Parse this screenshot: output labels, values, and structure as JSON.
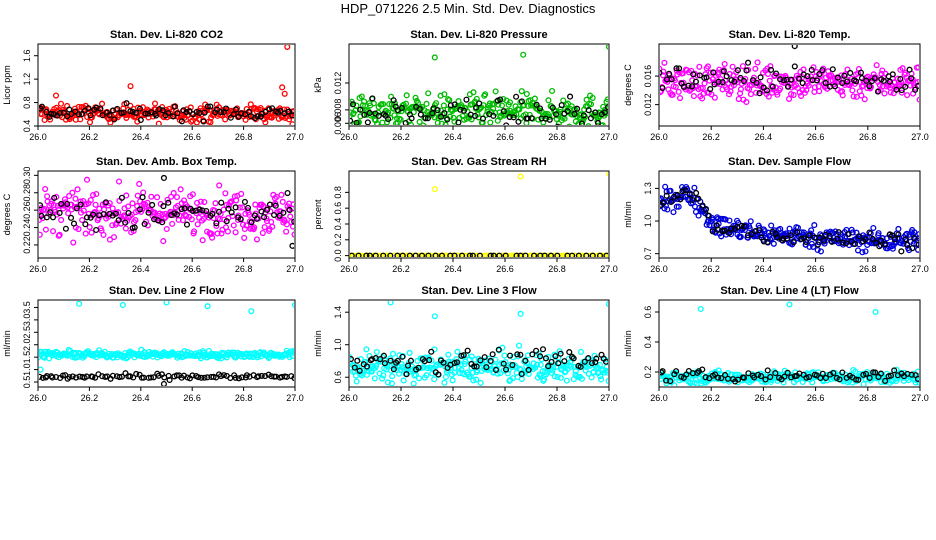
{
  "page_title": "HDP_071226  2.5 Min. Std. Dev. Diagnostics",
  "chart_data": [
    {
      "type": "scatter",
      "title": "Stan. Dev. Li-820 CO2",
      "ylabel": "Licor ppm",
      "xlim": [
        26.0,
        27.0
      ],
      "ylim": [
        0.4,
        1.8
      ],
      "x_ticks": [
        "26.0",
        "26.2",
        "26.4",
        "26.6",
        "26.8",
        "27.0"
      ],
      "y_ticks": [
        "0.4",
        "0.8",
        "1.2",
        "1.6"
      ],
      "grid": false,
      "series": [
        {
          "color": "#ff0000",
          "center": 0.62,
          "spread": 0.07,
          "count": 260,
          "outliers": [
            {
              "x": 26.07,
              "y": 0.92
            },
            {
              "x": 26.36,
              "y": 1.08
            },
            {
              "x": 26.47,
              "y": 0.44
            },
            {
              "x": 26.95,
              "y": 1.06
            },
            {
              "x": 26.96,
              "y": 0.95
            },
            {
              "x": 26.97,
              "y": 1.75
            },
            {
              "x": 26.99,
              "y": 0.43
            }
          ]
        },
        {
          "color": "#000000",
          "center": 0.63,
          "spread": 0.06,
          "count": 85,
          "outliers": []
        }
      ]
    },
    {
      "type": "scatter",
      "title": "Stan. Dev. Li-820 Pressure",
      "ylabel": "kPa",
      "xlim": [
        26.0,
        27.0
      ],
      "ylim": [
        0.0056,
        0.0178
      ],
      "x_ticks": [
        "26.0",
        "26.2",
        "26.4",
        "26.6",
        "26.8",
        "27.0"
      ],
      "y_ticks": [
        "0.006",
        "0.008",
        "0.012"
      ],
      "grid": false,
      "series": [
        {
          "color": "#00bb00",
          "center": 0.0078,
          "spread": 0.0012,
          "count": 300,
          "outliers": [
            {
              "x": 26.33,
              "y": 0.0158
            },
            {
              "x": 26.67,
              "y": 0.0162
            },
            {
              "x": 27.0,
              "y": 0.0174
            }
          ]
        },
        {
          "color": "#000000",
          "center": 0.0075,
          "spread": 0.001,
          "count": 80,
          "outliers": []
        }
      ]
    },
    {
      "type": "scatter",
      "title": "Stan. Dev. Li-820 Temp.",
      "ylabel": "degrees C",
      "xlim": [
        26.0,
        27.0
      ],
      "ylim": [
        0.009,
        0.0205
      ],
      "x_ticks": [
        "26.0",
        "26.2",
        "26.4",
        "26.6",
        "26.8",
        "27.0"
      ],
      "y_ticks": [
        "0.012",
        "0.016"
      ],
      "grid": false,
      "series": [
        {
          "color": "#ff00ff",
          "center": 0.0152,
          "spread": 0.0012,
          "count": 300,
          "outliers": []
        },
        {
          "color": "#000000",
          "center": 0.0156,
          "spread": 0.001,
          "count": 85,
          "outliers": [
            {
              "x": 26.52,
              "y": 0.0202
            }
          ]
        }
      ]
    },
    {
      "type": "scatter",
      "title": "Stan. Dev. Amb. Box Temp.",
      "ylabel": "degrees C",
      "xlim": [
        26.0,
        27.0
      ],
      "ylim": [
        0.205,
        0.305
      ],
      "x_ticks": [
        "26.0",
        "26.2",
        "26.4",
        "26.6",
        "26.8",
        "27.0"
      ],
      "y_ticks": [
        "0.22",
        "0.24",
        "0.26",
        "0.28",
        "0.30"
      ],
      "grid": false,
      "series": [
        {
          "color": "#ff00ff",
          "center": 0.257,
          "spread": 0.013,
          "count": 300,
          "outliers": []
        },
        {
          "color": "#000000",
          "center": 0.255,
          "spread": 0.01,
          "count": 80,
          "outliers": [
            {
              "x": 26.49,
              "y": 0.297
            },
            {
              "x": 26.99,
              "y": 0.219
            }
          ]
        }
      ]
    },
    {
      "type": "scatter",
      "title": "Stan. Dev. Gas Stream RH",
      "ylabel": "percent",
      "xlim": [
        26.0,
        27.0
      ],
      "ylim": [
        -0.03,
        1.07
      ],
      "x_ticks": [
        "26.0",
        "26.2",
        "26.4",
        "26.6",
        "26.8",
        "27.0"
      ],
      "y_ticks": [
        "0.0",
        "0.2",
        "0.4",
        "0.6",
        "0.8"
      ],
      "grid": false,
      "series": [
        {
          "color": "#ffff00",
          "center": 0.0,
          "spread": 0.0,
          "count": 110,
          "outliers": [
            {
              "x": 26.33,
              "y": 0.84
            },
            {
              "x": 26.66,
              "y": 1.0
            },
            {
              "x": 27.0,
              "y": 1.04
            }
          ]
        },
        {
          "color": "#000000",
          "center": 0.0,
          "spread": 0.0,
          "count": 40,
          "outliers": []
        }
      ]
    },
    {
      "type": "scatter",
      "title": "Stan. Dev. Sample Flow",
      "ylabel": "ml/min",
      "xlim": [
        26.0,
        27.0
      ],
      "ylim": [
        0.66,
        1.46
      ],
      "x_ticks": [
        "26.0",
        "26.2",
        "26.4",
        "26.6",
        "26.8",
        "27.0"
      ],
      "y_ticks": [
        "0.7",
        "1.0",
        "1.3"
      ],
      "grid": false,
      "series": [
        {
          "color": "#0000dd",
          "trend": [
            [
              26.0,
              1.15
            ],
            [
              26.1,
              1.25
            ],
            [
              26.14,
              1.2
            ],
            [
              26.22,
              0.95
            ],
            [
              26.4,
              0.88
            ],
            [
              26.6,
              0.85
            ],
            [
              26.8,
              0.82
            ],
            [
              27.0,
              0.83
            ]
          ],
          "spread": 0.05,
          "count": 320,
          "outliers": []
        },
        {
          "color": "#000000",
          "trend": [
            [
              26.0,
              1.15
            ],
            [
              26.1,
              1.25
            ],
            [
              26.14,
              1.2
            ],
            [
              26.22,
              0.95
            ],
            [
              26.4,
              0.88
            ],
            [
              26.6,
              0.85
            ],
            [
              26.8,
              0.82
            ],
            [
              27.0,
              0.83
            ]
          ],
          "spread": 0.04,
          "count": 80,
          "outliers": []
        }
      ]
    },
    {
      "type": "scatter",
      "title": "Stan. Dev. Line 2 Flow",
      "ylabel": "ml/min",
      "xlim": [
        26.0,
        27.0
      ],
      "ylim": [
        0.3,
        3.8
      ],
      "x_ticks": [
        "26.0",
        "26.2",
        "26.4",
        "26.6",
        "26.8",
        "27.0"
      ],
      "y_ticks": [
        "0.5",
        "1.0",
        "1.5",
        "2.0",
        "2.5",
        "3.0",
        "3.5"
      ],
      "grid": false,
      "series": [
        {
          "color": "#00ffff",
          "center": 1.6,
          "spread": 0.07,
          "count": 280,
          "outliers": [
            {
              "x": 26.16,
              "y": 3.65
            },
            {
              "x": 26.33,
              "y": 3.6
            },
            {
              "x": 26.5,
              "y": 3.7
            },
            {
              "x": 26.66,
              "y": 3.55
            },
            {
              "x": 26.83,
              "y": 3.35
            },
            {
              "x": 27.0,
              "y": 3.6
            },
            {
              "x": 26.01,
              "y": 1.0
            }
          ]
        },
        {
          "color": "#000000",
          "center": 0.72,
          "spread": 0.06,
          "count": 90,
          "outliers": [
            {
              "x": 26.49,
              "y": 0.42
            }
          ]
        }
      ]
    },
    {
      "type": "scatter",
      "title": "Stan. Dev. Line 3 Flow",
      "ylabel": "ml/min",
      "xlim": [
        26.0,
        27.0
      ],
      "ylim": [
        0.48,
        1.55
      ],
      "x_ticks": [
        "26.0",
        "26.2",
        "26.4",
        "26.6",
        "26.8",
        "27.0"
      ],
      "y_ticks": [
        "0.6",
        "1.0",
        "1.4"
      ],
      "grid": false,
      "series": [
        {
          "color": "#00ffff",
          "center": 0.72,
          "spread": 0.09,
          "count": 320,
          "outliers": [
            {
              "x": 26.16,
              "y": 1.52
            },
            {
              "x": 26.33,
              "y": 1.35
            },
            {
              "x": 26.66,
              "y": 1.38
            },
            {
              "x": 27.0,
              "y": 1.5
            }
          ]
        },
        {
          "color": "#000000",
          "center": 0.8,
          "spread": 0.07,
          "count": 80,
          "outliers": []
        }
      ]
    },
    {
      "type": "scatter",
      "title": "Stan. Dev. Line 4 (LT) Flow",
      "ylabel": "ml/min",
      "xlim": [
        26.0,
        27.0
      ],
      "ylim": [
        0.1,
        0.68
      ],
      "x_ticks": [
        "26.0",
        "26.2",
        "26.4",
        "26.6",
        "26.8",
        "27.0"
      ],
      "y_ticks": [
        "0.2",
        "0.4",
        "0.6"
      ],
      "grid": false,
      "series": [
        {
          "color": "#00ffff",
          "center": 0.165,
          "spread": 0.02,
          "count": 300,
          "outliers": [
            {
              "x": 26.16,
              "y": 0.62
            },
            {
              "x": 26.5,
              "y": 0.65
            },
            {
              "x": 26.83,
              "y": 0.6
            }
          ]
        },
        {
          "color": "#000000",
          "center": 0.175,
          "spread": 0.018,
          "count": 80,
          "outliers": []
        }
      ]
    }
  ]
}
